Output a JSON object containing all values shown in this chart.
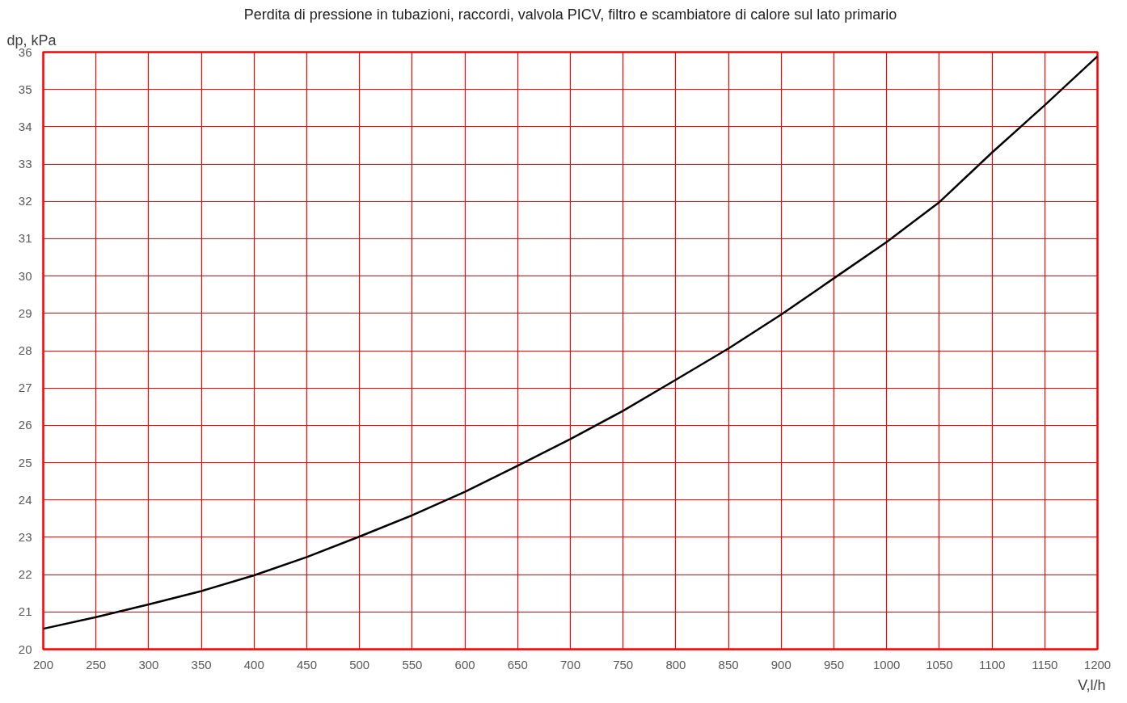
{
  "chart_data": {
    "type": "line",
    "title": "Perdita di pressione in tubazioni, raccordi, valvola PICV, filtro e scambiatore di calore sul lato primario",
    "xlabel": "V,l/h",
    "ylabel": "dp, kPa",
    "x": [
      200,
      250,
      300,
      350,
      400,
      450,
      500,
      550,
      600,
      650,
      700,
      750,
      800,
      850,
      900,
      950,
      1000,
      1050,
      1100,
      1150,
      1200
    ],
    "series": [
      {
        "color": "#000000",
        "values": [
          20.55,
          20.86,
          21.2,
          21.56,
          21.98,
          22.47,
          23.02,
          23.59,
          24.22,
          24.92,
          25.63,
          26.39,
          27.22,
          28.06,
          28.97,
          29.94,
          30.91,
          31.98,
          33.31,
          34.58,
          35.89
        ]
      }
    ],
    "xlim": [
      200,
      1200
    ],
    "ylim": [
      20,
      36
    ],
    "xticks": [
      200,
      250,
      300,
      350,
      400,
      450,
      500,
      550,
      600,
      650,
      700,
      750,
      800,
      850,
      900,
      950,
      1000,
      1050,
      1100,
      1150,
      1200
    ],
    "yticks": [
      20,
      21,
      22,
      23,
      24,
      25,
      26,
      27,
      28,
      29,
      30,
      31,
      32,
      33,
      34,
      35,
      36
    ],
    "grid": true,
    "marker": "none",
    "line_style": "solid"
  }
}
